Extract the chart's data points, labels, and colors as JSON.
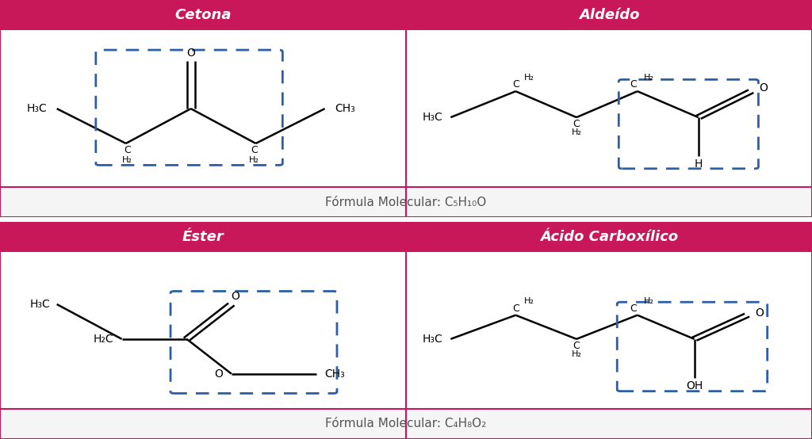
{
  "bg_color": "#ffffff",
  "pink_color": "#c8185a",
  "blue_dash_color": "#2c5fa8",
  "black": "#1a1a1a",
  "title1_left": "Cetona",
  "title1_right": "Aldeído",
  "title2_left": "Éster",
  "title2_right": "Ácido Carboxílico",
  "formula1": "Fórmula Molecular: C₅H₁₀O",
  "formula2": "Fórmula Molecular: C₄H₈O₂"
}
